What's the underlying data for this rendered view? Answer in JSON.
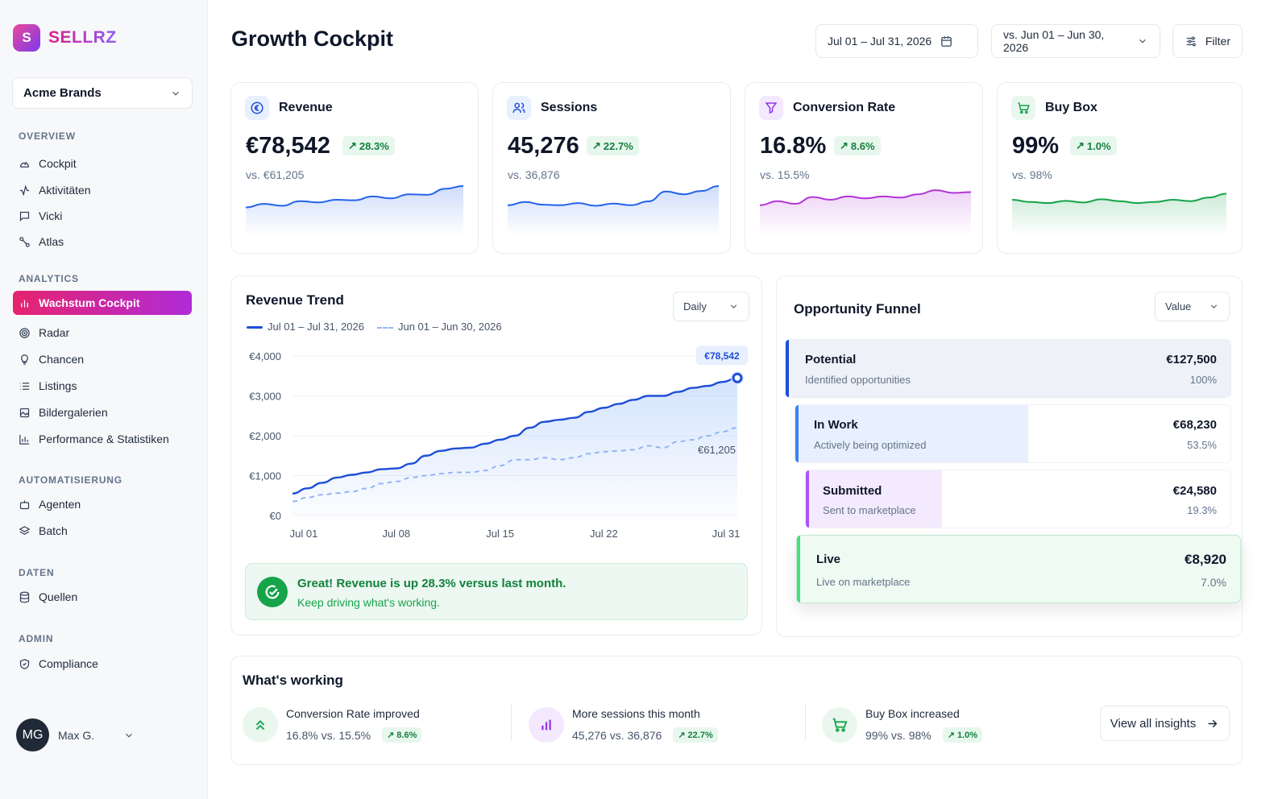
{
  "app": {
    "logo_letter": "S",
    "name": "SELLRZ"
  },
  "brand_select": {
    "value": "Acme Brands"
  },
  "sidebar": {
    "sections": [
      {
        "title": "OVERVIEW",
        "items": [
          {
            "label": "Cockpit",
            "icon": "gauge-icon"
          },
          {
            "label": "Aktivitäten",
            "icon": "activity-icon"
          },
          {
            "label": "Vicki",
            "icon": "chat-icon"
          },
          {
            "label": "Atlas",
            "icon": "route-icon"
          }
        ]
      },
      {
        "title": "ANALYTICS",
        "items": [
          {
            "label": "Wachstum Cockpit",
            "icon": "bar-chart-icon",
            "active": true
          },
          {
            "label": "Radar",
            "icon": "radar-icon"
          },
          {
            "label": "Chancen",
            "icon": "lightbulb-icon"
          },
          {
            "label": "Listings",
            "icon": "list-icon"
          },
          {
            "label": "Bildergalerien",
            "icon": "gallery-icon"
          },
          {
            "label": "Performance & Statistiken",
            "icon": "stats-icon"
          }
        ]
      },
      {
        "title": "AUTOMATISIERUNG",
        "items": [
          {
            "label": "Agenten",
            "icon": "bot-icon"
          },
          {
            "label": "Batch",
            "icon": "layers-icon"
          }
        ]
      },
      {
        "title": "DATEN",
        "items": [
          {
            "label": "Quellen",
            "icon": "database-icon"
          }
        ]
      },
      {
        "title": "ADMIN",
        "items": [
          {
            "label": "Compliance",
            "icon": "shield-icon"
          }
        ]
      }
    ]
  },
  "user": {
    "initials": "MG",
    "name": "Max G."
  },
  "header": {
    "title": "Growth Cockpit",
    "date_range": "Jul 01 – Jul 31, 2026",
    "compare_range": "vs. Jun 01 – Jun 30, 2026",
    "filter_label": "Filter"
  },
  "kpis": [
    {
      "title": "Revenue",
      "icon": "euro-icon",
      "value": "€78,542",
      "change": "28.3%",
      "vs": "vs. €61,205",
      "color": "#2563eb",
      "spark": [
        0.22,
        0.35,
        0.28,
        0.45,
        0.4,
        0.5,
        0.48,
        0.62,
        0.55,
        0.7,
        0.68,
        0.9,
        1.0
      ]
    },
    {
      "title": "Sessions",
      "icon": "users-icon",
      "value": "45,276",
      "change": "22.7%",
      "vs": "vs. 36,876",
      "color": "#2563eb",
      "spark": [
        0.3,
        0.42,
        0.32,
        0.3,
        0.38,
        0.28,
        0.36,
        0.3,
        0.44,
        0.8,
        0.7,
        0.82,
        1.0
      ]
    },
    {
      "title": "Conversion Rate",
      "icon": "funnel-icon",
      "value": "16.8%",
      "change": "8.6%",
      "vs": "vs. 15.5%",
      "color": "#b035d6",
      "spark": [
        0.3,
        0.45,
        0.35,
        0.6,
        0.5,
        0.62,
        0.55,
        0.62,
        0.58,
        0.7,
        0.85,
        0.75,
        0.78
      ]
    },
    {
      "title": "Buy Box",
      "icon": "cart-icon",
      "value": "99%",
      "change": "1.0%",
      "vs": "vs. 98%",
      "color": "#16a34a",
      "spark": [
        0.5,
        0.42,
        0.38,
        0.46,
        0.4,
        0.52,
        0.45,
        0.38,
        0.42,
        0.5,
        0.45,
        0.58,
        0.72
      ]
    }
  ],
  "revenue_trend": {
    "title": "Revenue Trend",
    "granularity": "Daily",
    "legend_current": "Jul 01 – Jul 31, 2026",
    "legend_previous": "Jun 01 – Jun 30, 2026",
    "callout_current": "€78,542",
    "callout_previous": "€61,205",
    "insight_title": "Great! Revenue is up 28.3% versus last month.",
    "insight_sub": "Keep driving what's working."
  },
  "chart_data": {
    "type": "area",
    "title": "Revenue Trend",
    "x_ticks": [
      "Jul 01",
      "Jul 08",
      "Jul 15",
      "Jul 22",
      "Jul 31"
    ],
    "y_ticks": [
      "€4,000",
      "€3,000",
      "€2,000",
      "€1,000",
      "€0"
    ],
    "ylim": [
      0,
      4000
    ],
    "grid": true,
    "series": [
      {
        "name": "Jul 01 – Jul 31, 2026",
        "color": "#1d4ed8",
        "style": "solid",
        "x": [
          1,
          2,
          3,
          4,
          5,
          6,
          7,
          8,
          9,
          10,
          11,
          12,
          13,
          14,
          15,
          16,
          17,
          18,
          19,
          20,
          21,
          22,
          23,
          24,
          25,
          26,
          27,
          28,
          29,
          30,
          31
        ],
        "values": [
          550,
          680,
          820,
          950,
          1020,
          1080,
          1160,
          1180,
          1300,
          1500,
          1620,
          1680,
          1700,
          1800,
          1900,
          2000,
          2200,
          2350,
          2400,
          2450,
          2600,
          2700,
          2800,
          2900,
          3000,
          3000,
          3100,
          3200,
          3250,
          3350,
          3450
        ]
      },
      {
        "name": "Jun 01 – Jun 30, 2026",
        "color": "#93b4f5",
        "style": "dashed",
        "x": [
          1,
          2,
          3,
          4,
          5,
          6,
          7,
          8,
          9,
          10,
          11,
          12,
          13,
          14,
          15,
          16,
          17,
          18,
          19,
          20,
          21,
          22,
          23,
          24,
          25,
          26,
          27,
          28,
          29,
          30,
          31
        ],
        "values": [
          350,
          450,
          520,
          560,
          600,
          680,
          800,
          850,
          950,
          1000,
          1050,
          1080,
          1080,
          1130,
          1250,
          1400,
          1400,
          1450,
          1400,
          1450,
          1550,
          1600,
          1620,
          1650,
          1750,
          1700,
          1850,
          1900,
          2000,
          2100,
          2200
        ]
      }
    ]
  },
  "funnel": {
    "title": "Opportunity Funnel",
    "select": "Value",
    "stages": [
      {
        "name": "Potential",
        "sub": "Identified opportunities",
        "value": "€127,500",
        "pct": "100%",
        "share": 1.0,
        "color": "#1d4ed8",
        "fill": "#eef2f8"
      },
      {
        "name": "In Work",
        "sub": "Actively being optimized",
        "value": "€68,230",
        "pct": "53.5%",
        "share": 0.535,
        "color": "#3b82f6",
        "fill": "#e8f0fd"
      },
      {
        "name": "Submitted",
        "sub": "Sent to marketplace",
        "value": "€24,580",
        "pct": "19.3%",
        "share": 0.193,
        "color": "#a855f7",
        "fill": "#f3eafd"
      },
      {
        "name": "Live",
        "sub": "Live on marketplace",
        "value": "€8,920",
        "pct": "7.0%",
        "share": 0.07,
        "color": "#4ade80",
        "fill": "#eefaf2"
      }
    ]
  },
  "whats_working": {
    "title": "What's working",
    "items": [
      {
        "title": "Conversion Rate improved",
        "detail": "16.8% vs. 15.5%",
        "change": "8.6%",
        "icon": "chevrons-up-icon",
        "color": "#16a34a",
        "bg": "#e9f7ef"
      },
      {
        "title": "More sessions this month",
        "detail": "45,276 vs. 36,876",
        "change": "22.7%",
        "icon": "bar-chart-icon",
        "color": "#9333ea",
        "bg": "#f3e8fd"
      },
      {
        "title": "Buy Box increased",
        "detail": "99% vs. 98%",
        "change": "1.0%",
        "icon": "cart-icon",
        "color": "#16a34a",
        "bg": "#e9f7ef"
      }
    ],
    "view_all": "View all insights"
  }
}
